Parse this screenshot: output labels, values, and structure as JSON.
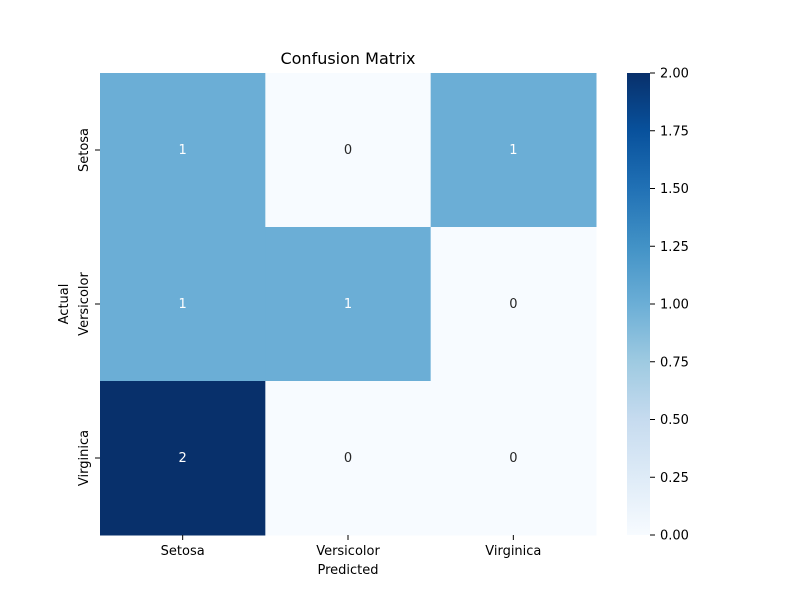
{
  "chart_data": {
    "type": "heatmap",
    "title": "Confusion Matrix",
    "xlabel": "Predicted",
    "ylabel": "Actual",
    "x_categories": [
      "Setosa",
      "Versicolor",
      "Virginica"
    ],
    "y_categories": [
      "Setosa",
      "Versicolor",
      "Virginica"
    ],
    "values": [
      [
        1,
        0,
        1
      ],
      [
        1,
        1,
        0
      ],
      [
        2,
        0,
        0
      ]
    ],
    "colormap": "Blues",
    "vmin": 0,
    "vmax": 2,
    "colorbar_ticks": [
      "0.00",
      "0.25",
      "0.50",
      "0.75",
      "1.00",
      "1.25",
      "1.50",
      "1.75",
      "2.00"
    ],
    "colors": {
      "zero": "#f7fbff",
      "one": "#6baed6",
      "two": "#08306b"
    }
  }
}
